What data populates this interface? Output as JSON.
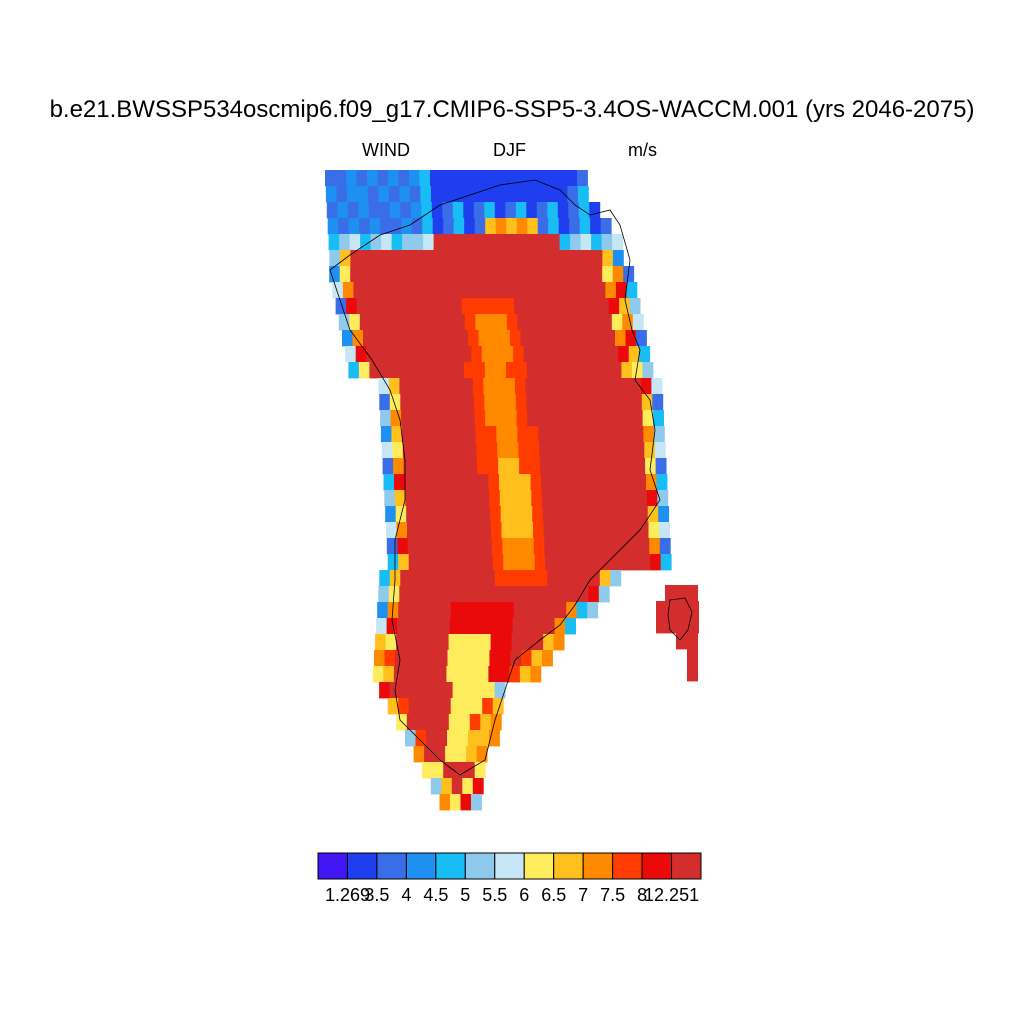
{
  "title": "b.e21.BWSSP534oscmip6.f09_g17.CMIP6-SSP5-3.4OS-WACCM.001 (yrs 2046-2075)",
  "variable": "WIND",
  "season": "DJF",
  "units": "m/s",
  "colorbar": {
    "colors": [
      "#4216f5",
      "#1f3ef0",
      "#3a6ee8",
      "#1e90f2",
      "#19bdf5",
      "#8fc9ec",
      "#c6e6f5",
      "#ffec5c",
      "#ffbf1c",
      "#ff8a00",
      "#ff3b00",
      "#ea0a0a",
      "#d42d2d"
    ],
    "labels": [
      "1.269",
      "3.5",
      "4",
      "4.5",
      "5",
      "5.5",
      "6",
      "6.5",
      "7",
      "7.5",
      "8",
      "12.251"
    ]
  },
  "chart_data": {
    "type": "heatmap",
    "title": "b.e21.BWSSP534oscmip6.f09_g17.CMIP6-SSP5-3.4OS-WACCM.001 (yrs 2046-2075)",
    "variable": "WIND",
    "season": "DJF",
    "units": "m/s",
    "levels": [
      1.269,
      3.5,
      4,
      4.5,
      5,
      5.5,
      6,
      6.5,
      7,
      7.5,
      8,
      12.251
    ]
  }
}
